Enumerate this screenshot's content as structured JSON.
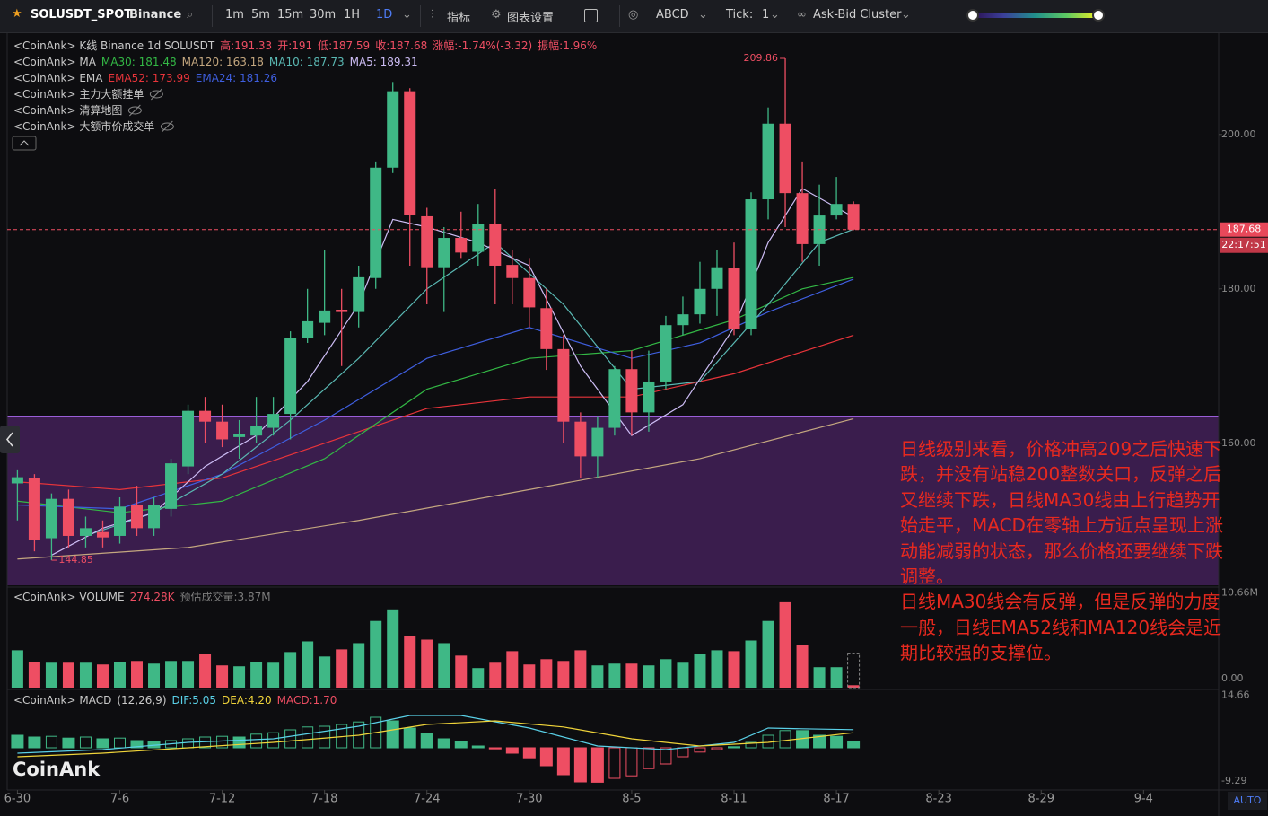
{
  "toolbar": {
    "symbol": "SOLUSDT_SPOT",
    "exchange": "Binance",
    "intervals": [
      "1m",
      "5m",
      "15m",
      "30m",
      "1H",
      "1D"
    ],
    "indicators": "指标",
    "settings": "图表设置",
    "drawing": "ABCD",
    "tick_label": "Tick:",
    "tick_value": "1",
    "cluster": "Ask-Bid Cluster"
  },
  "legend": {
    "rows": [
      [
        {
          "text": "<CoinAnk> K线  Binance 1d SOLUSDT",
          "color": "#c9c9c9"
        },
        {
          "text": "高:191.33",
          "color": "#ee4e63"
        },
        {
          "text": "开:191",
          "color": "#ee4e63"
        },
        {
          "text": "低:187.59",
          "color": "#ee4e63"
        },
        {
          "text": "收:187.68",
          "color": "#ee4e63"
        },
        {
          "text": "涨幅:-1.74%(-3.32)",
          "color": "#ee4e63"
        },
        {
          "text": "振幅:1.96%",
          "color": "#ee4e63"
        }
      ],
      [
        {
          "text": "<CoinAnk> MA",
          "color": "#c9c9c9"
        },
        {
          "text": "MA30: 181.48",
          "color": "#33b845"
        },
        {
          "text": "MA120: 163.18",
          "color": "#c4a77f"
        },
        {
          "text": "MA10: 187.73",
          "color": "#5ab8b3"
        },
        {
          "text": "MA5: 189.31",
          "color": "#cdbdf5"
        }
      ],
      [
        {
          "text": "<CoinAnk> EMA",
          "color": "#c9c9c9"
        },
        {
          "text": "EMA52: 173.99",
          "color": "#e8343a"
        },
        {
          "text": "EMA24: 181.26",
          "color": "#3f5fe0"
        }
      ],
      [
        {
          "text": "<CoinAnk> 主力大额挂单",
          "color": "#c9c9c9"
        }
      ],
      [
        {
          "text": "<CoinAnk> 清算地图",
          "color": "#c9c9c9"
        }
      ],
      [
        {
          "text": "<CoinAnk> 大额市价成交单",
          "color": "#c9c9c9"
        }
      ]
    ]
  },
  "volume_legend": [
    {
      "text": "<CoinAnk> VOLUME",
      "color": "#c9c9c9"
    },
    {
      "text": "274.28K",
      "color": "#ee4e63"
    },
    {
      "text": "预估成交量:3.87M",
      "color": "#7d7d7d"
    }
  ],
  "macd_legend": [
    {
      "text": "<CoinAnk> MACD",
      "color": "#c9c9c9"
    },
    {
      "text": "(12,26,9)",
      "color": "#c9c9c9"
    },
    {
      "text": "DIF:5.05",
      "color": "#5ad1e8"
    },
    {
      "text": "DEA:4.20",
      "color": "#f0d43a"
    },
    {
      "text": "MACD:1.70",
      "color": "#ee4e63"
    }
  ],
  "watermark": "CoinAnk",
  "auto": "AUTO",
  "last_time": "22:17:51",
  "annotation": [
    "日线级别来看，价格冲高209之后快速下跌，并没有站稳200整数关口，反弹之后又继续下跌，日线MA30线由上行趋势开始走平，MACD在零轴上方近点呈现上涨动能减弱的状态，那么价格还要继续下跌调整。",
    "日线MA30线会有反弹，但是反弹的力度一般，日线EMA52线和MA120线会是近期比较强的支撑位。"
  ],
  "chart_data": [
    {
      "type": "candlestick",
      "up_color": "#3fb886",
      "down_color": "#ee4e63",
      "x": [
        0,
        1,
        2,
        3,
        4,
        5,
        6,
        7,
        8,
        9,
        10,
        11,
        12,
        13,
        14,
        15,
        16,
        17,
        18,
        19,
        20,
        21,
        22,
        23,
        24,
        25,
        26,
        27,
        28,
        29,
        30,
        31,
        32,
        33,
        34,
        35,
        36,
        37,
        38,
        39,
        40,
        41,
        42,
        43,
        44,
        45,
        46,
        47,
        48,
        49
      ],
      "open": [
        154.8,
        155.5,
        147.7,
        152.8,
        148,
        148.5,
        148,
        152,
        149,
        151.5,
        157,
        164.2,
        162.8,
        160.8,
        161,
        162,
        163.8,
        173.6,
        175.6,
        177.3,
        177,
        181.4,
        195.7,
        205.6,
        189.4,
        182.8,
        186.6,
        184.8,
        188.4,
        183.1,
        181.4,
        177.5,
        172.2,
        162.8,
        158.3,
        162,
        169.6,
        164,
        168,
        175.3,
        176.7,
        180,
        182.7,
        174.8,
        191.6,
        201.4,
        192.4,
        185.8,
        189.5,
        191
      ],
      "high": [
        156.5,
        156,
        153.5,
        154,
        150.5,
        150,
        153,
        154.5,
        153,
        158,
        165,
        166,
        165,
        163,
        166,
        166,
        174.5,
        180,
        185,
        180,
        183,
        196.5,
        206.8,
        206,
        190.5,
        188,
        190,
        191,
        193,
        185,
        184,
        180,
        174,
        164,
        163.5,
        170,
        172,
        172,
        176.5,
        179,
        183.5,
        185,
        186,
        192.5,
        203.5,
        209.86,
        196.5,
        193.5,
        194.5,
        191.33
      ],
      "low": [
        150,
        146,
        144.85,
        146.5,
        146.5,
        146.5,
        147,
        148,
        148,
        150.5,
        156,
        160,
        159.5,
        158,
        160,
        161,
        160.5,
        173,
        174,
        170,
        175,
        180,
        195,
        183,
        178,
        177,
        184,
        183,
        178,
        178,
        175,
        169.5,
        160,
        155.5,
        155.5,
        161,
        161,
        161.5,
        167,
        174,
        175.5,
        176.5,
        174,
        174,
        189,
        188,
        183.5,
        183,
        189,
        187.59
      ],
      "close": [
        155.6,
        147.5,
        152.8,
        148,
        149,
        147.8,
        151.8,
        149,
        152,
        157.4,
        164.2,
        162.8,
        160.5,
        161.2,
        162.2,
        163.8,
        173.6,
        175.8,
        177.2,
        177,
        181.5,
        195.7,
        205.6,
        189.6,
        182.8,
        186.6,
        184.7,
        188.4,
        183,
        181.4,
        177.6,
        172.2,
        162.8,
        158.3,
        162,
        169.6,
        164,
        168,
        175.3,
        176.7,
        180,
        182.8,
        174.8,
        191.6,
        201.4,
        192.4,
        185.8,
        189.5,
        191,
        187.68
      ],
      "series": [
        {
          "name": "MA120",
          "color": "#c4a77f",
          "x": [
            0,
            10,
            20,
            30,
            40,
            49
          ],
          "values": [
            145,
            146.5,
            150,
            154,
            158,
            163.18
          ]
        },
        {
          "name": "EMA52",
          "color": "#e8343a",
          "x": [
            0,
            6,
            12,
            18,
            24,
            30,
            36,
            42,
            49
          ],
          "values": [
            155,
            154,
            155.5,
            160,
            164.5,
            166,
            166,
            169,
            173.99
          ]
        },
        {
          "name": "MA30",
          "color": "#33b845",
          "x": [
            0,
            6,
            12,
            18,
            24,
            30,
            36,
            42,
            46,
            49
          ],
          "values": [
            152.5,
            151,
            152.5,
            158,
            167,
            171,
            172,
            176,
            180,
            181.48
          ]
        },
        {
          "name": "EMA24",
          "color": "#3f5fe0",
          "x": [
            0,
            6,
            12,
            18,
            24,
            30,
            36,
            40,
            44,
            49
          ],
          "values": [
            152,
            151.5,
            156,
            163,
            171,
            175,
            171,
            173,
            177,
            181.26
          ]
        },
        {
          "name": "MA10",
          "color": "#5ab8b3",
          "x": [
            4,
            8,
            12,
            16,
            20,
            24,
            28,
            32,
            36,
            40,
            44,
            47,
            49
          ],
          "values": [
            148,
            151,
            156,
            163,
            171,
            180,
            186,
            178,
            167,
            168,
            178,
            186,
            187.73
          ]
        },
        {
          "name": "MA5",
          "color": "#cdbdf5",
          "x": [
            2,
            5,
            8,
            11,
            14,
            17,
            20,
            22,
            24,
            27,
            30,
            33,
            36,
            39,
            42,
            44,
            46,
            49
          ],
          "values": [
            145.5,
            149,
            151,
            157,
            161,
            168,
            178,
            189,
            188,
            186,
            183,
            170,
            161,
            165,
            175,
            186,
            193,
            189.31
          ]
        }
      ],
      "max_label": 209.86,
      "min_label": 144.85,
      "last_price": 187.68,
      "xlim": [
        -0.6,
        70.4
      ],
      "xticks": [
        {
          "value": 0,
          "label": "6-30"
        },
        {
          "value": 6,
          "label": "7-6"
        },
        {
          "value": 12,
          "label": "7-12"
        },
        {
          "value": 18,
          "label": "7-18"
        },
        {
          "value": 24,
          "label": "7-24"
        },
        {
          "value": 30,
          "label": "7-30"
        },
        {
          "value": 36,
          "label": "8-5"
        },
        {
          "value": 42,
          "label": "8-11"
        },
        {
          "value": 48,
          "label": "8-17"
        },
        {
          "value": 54,
          "label": "8-23"
        },
        {
          "value": 60,
          "label": "8-29"
        },
        {
          "value": 66,
          "label": "9-4"
        }
      ],
      "ylim": [
        141.6,
        213.0
      ],
      "yticks": [
        {
          "value": 200,
          "label": "200.00"
        },
        {
          "value": 180,
          "label": "180.00"
        },
        {
          "value": 160,
          "label": "160.00"
        }
      ]
    },
    {
      "type": "bar",
      "values": [
        4.2,
        2.9,
        2.8,
        2.8,
        2.8,
        2.6,
        2.9,
        3.0,
        2.7,
        3.0,
        3.0,
        3.8,
        2.5,
        2.4,
        2.9,
        2.8,
        4.0,
        5.2,
        3.5,
        4.3,
        5.0,
        7.5,
        8.8,
        5.8,
        5.4,
        5.0,
        3.6,
        2.2,
        2.8,
        4.1,
        2.6,
        3.2,
        3.0,
        4.2,
        2.5,
        2.7,
        2.7,
        2.5,
        3.2,
        2.8,
        3.8,
        4.2,
        4.1,
        5.3,
        7.5,
        9.6,
        4.8,
        2.3,
        2.3,
        0.274
      ],
      "estimate": 3.87,
      "ylim": [
        0,
        10.8
      ],
      "yticks": [
        {
          "value": 10.66,
          "label": "10.66M"
        },
        {
          "value": 0,
          "label": "0.00"
        }
      ]
    },
    {
      "type": "macd",
      "up_color": "#3fb886",
      "down_color": "#ee4e63",
      "values": [
        3.5,
        3.0,
        3.2,
        2.7,
        3.0,
        2.5,
        2.7,
        2.0,
        1.8,
        2.0,
        2.5,
        3.0,
        3.2,
        3.0,
        3.8,
        4.2,
        5.0,
        5.8,
        6.0,
        6.5,
        7.2,
        8.5,
        7.5,
        5.5,
        4.0,
        2.5,
        1.8,
        0.5,
        -0.3,
        -1.5,
        -2.8,
        -5,
        -7.5,
        -9.5,
        -9.6,
        -8.5,
        -7.8,
        -5.8,
        -4.5,
        -2.5,
        -1.2,
        -0.5,
        0.3,
        1.5,
        3.5,
        4.8,
        4.8,
        3.5,
        3.2,
        1.7
      ],
      "series": [
        {
          "name": "DIF",
          "color": "#5ad1e8",
          "x": [
            0,
            5,
            10,
            15,
            20,
            23,
            26,
            30,
            34,
            38,
            42,
            44,
            46,
            49
          ],
          "values": [
            -1.5,
            -0.5,
            1.5,
            2.5,
            6,
            9,
            9,
            5.5,
            0.5,
            -0.5,
            1.5,
            5.5,
            5.3,
            5.05
          ]
        },
        {
          "name": "DEA",
          "color": "#f0d43a",
          "x": [
            0,
            5,
            10,
            15,
            20,
            24,
            28,
            32,
            36,
            40,
            44,
            49
          ],
          "values": [
            -2.5,
            -1.5,
            0,
            1.5,
            3.5,
            6.5,
            7.5,
            5.8,
            2.5,
            0.5,
            1.5,
            4.2
          ]
        }
      ],
      "ylim": [
        -11.25,
        16.25
      ],
      "yticks": [
        14.66,
        -9.29
      ]
    }
  ]
}
